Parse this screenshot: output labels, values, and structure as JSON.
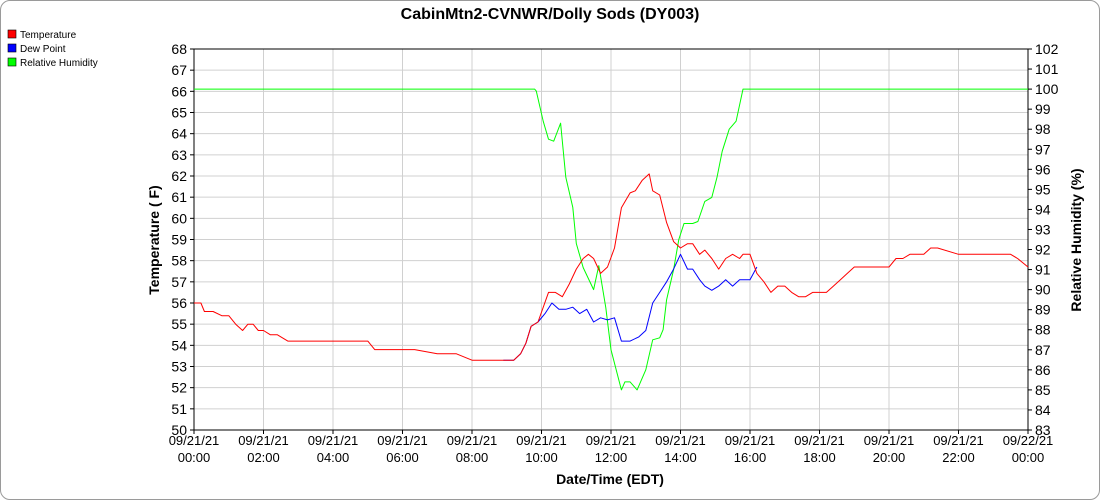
{
  "chart_data": {
    "type": "line",
    "title": "CabinMtn2-CVNWR/Dolly Sods (DY003)",
    "xlabel": "Date/Time (EDT)",
    "ylabel": "Temperature ( F)",
    "y2label": "Relative Humidity (%)",
    "ylim": [
      50,
      68
    ],
    "y2lim": [
      83,
      102
    ],
    "xlim_hours": [
      0,
      24
    ],
    "grid": true,
    "legend_position": "top-left",
    "x_ticks": [
      {
        "date": "09/21/21",
        "time": "00:00"
      },
      {
        "date": "09/21/21",
        "time": "02:00"
      },
      {
        "date": "09/21/21",
        "time": "04:00"
      },
      {
        "date": "09/21/21",
        "time": "06:00"
      },
      {
        "date": "09/21/21",
        "time": "08:00"
      },
      {
        "date": "09/21/21",
        "time": "10:00"
      },
      {
        "date": "09/21/21",
        "time": "12:00"
      },
      {
        "date": "09/21/21",
        "time": "14:00"
      },
      {
        "date": "09/21/21",
        "time": "16:00"
      },
      {
        "date": "09/21/21",
        "time": "18:00"
      },
      {
        "date": "09/21/21",
        "time": "20:00"
      },
      {
        "date": "09/21/21",
        "time": "22:00"
      },
      {
        "date": "09/22/21",
        "time": "00:00"
      }
    ],
    "y_ticks": [
      50,
      51,
      52,
      53,
      54,
      55,
      56,
      57,
      58,
      59,
      60,
      61,
      62,
      63,
      64,
      65,
      66,
      67,
      68
    ],
    "y2_ticks": [
      83,
      84,
      85,
      86,
      87,
      88,
      89,
      90,
      91,
      92,
      93,
      94,
      95,
      96,
      97,
      98,
      99,
      100,
      101,
      102
    ],
    "series": [
      {
        "name": "Temperature",
        "axis": "left",
        "color": "#ff0000",
        "x": [
          0.0,
          0.2,
          0.3,
          0.55,
          0.8,
          1.0,
          1.2,
          1.4,
          1.55,
          1.7,
          1.85,
          2.0,
          2.2,
          2.4,
          2.7,
          3.1,
          3.3,
          4.0,
          5.0,
          5.2,
          6.0,
          6.35,
          7.0,
          7.3,
          7.55,
          8.0,
          8.5,
          8.9,
          9.0,
          9.2,
          9.4,
          9.55,
          9.7,
          9.9,
          10.2,
          10.4,
          10.6,
          10.8,
          11.0,
          11.2,
          11.35,
          11.5,
          11.7,
          11.9,
          12.1,
          12.3,
          12.55,
          12.7,
          12.9,
          13.1,
          13.2,
          13.4,
          13.6,
          13.8,
          14.0,
          14.2,
          14.35,
          14.55,
          14.7,
          14.9,
          15.1,
          15.3,
          15.5,
          15.7,
          15.8,
          16.0,
          16.2,
          16.4,
          16.6,
          16.8,
          17.0,
          17.2,
          17.4,
          17.6,
          17.8,
          18.0,
          18.2,
          18.4,
          18.6,
          18.8,
          19.0,
          19.2,
          19.4,
          19.6,
          19.8,
          20.0,
          20.2,
          20.4,
          20.6,
          20.8,
          21.0,
          21.2,
          21.4,
          22.0,
          23.0,
          23.3,
          23.5,
          23.7,
          24.0
        ],
        "values": [
          56.0,
          56.0,
          55.6,
          55.6,
          55.4,
          55.4,
          55.0,
          54.7,
          55.0,
          55.0,
          54.7,
          54.7,
          54.5,
          54.5,
          54.2,
          54.2,
          54.2,
          54.2,
          54.2,
          53.8,
          53.8,
          53.8,
          53.6,
          53.6,
          53.6,
          53.3,
          53.3,
          53.3,
          53.3,
          53.3,
          53.6,
          54.1,
          54.9,
          55.1,
          56.5,
          56.5,
          56.3,
          56.9,
          57.6,
          58.1,
          58.3,
          58.1,
          57.4,
          57.7,
          58.6,
          60.5,
          61.2,
          61.3,
          61.8,
          62.1,
          61.3,
          61.1,
          59.8,
          58.9,
          58.6,
          58.8,
          58.8,
          58.3,
          58.5,
          58.1,
          57.6,
          58.1,
          58.3,
          58.1,
          58.3,
          58.3,
          57.4,
          57.0,
          56.5,
          56.8,
          56.8,
          56.5,
          56.3,
          56.3,
          56.5,
          56.5,
          56.5,
          56.8,
          57.1,
          57.4,
          57.7,
          57.7,
          57.7,
          57.7,
          57.7,
          57.7,
          58.1,
          58.1,
          58.3,
          58.3,
          58.3,
          58.6,
          58.6,
          58.3,
          58.3,
          58.3,
          58.3,
          58.1,
          57.7
        ]
      },
      {
        "name": "Dew Point",
        "axis": "left",
        "color": "#0000ff",
        "x": [
          8.9,
          9.0,
          9.2,
          9.4,
          9.55,
          9.7,
          9.9,
          10.1,
          10.3,
          10.5,
          10.7,
          10.9,
          11.1,
          11.3,
          11.5,
          11.7,
          11.9,
          12.1,
          12.3,
          12.55,
          12.8,
          13.0,
          13.2,
          13.4,
          13.6,
          13.8,
          14.0,
          14.2,
          14.35,
          14.55,
          14.7,
          14.9,
          15.1,
          15.3,
          15.5,
          15.7,
          15.8,
          16.0,
          16.2
        ],
        "values": [
          53.3,
          53.3,
          53.3,
          53.6,
          54.1,
          54.9,
          55.1,
          55.5,
          56.0,
          55.7,
          55.7,
          55.8,
          55.5,
          55.7,
          55.1,
          55.3,
          55.2,
          55.3,
          54.2,
          54.2,
          54.4,
          54.7,
          56.0,
          56.5,
          57.0,
          57.6,
          58.3,
          57.6,
          57.6,
          57.1,
          56.8,
          56.6,
          56.8,
          57.1,
          56.8,
          57.1,
          57.1,
          57.1,
          57.7
        ]
      },
      {
        "name": "Relative Humidity",
        "axis": "right",
        "color": "#00ff00",
        "x": [
          0.0,
          9.8,
          9.85,
          10.05,
          10.2,
          10.35,
          10.55,
          10.7,
          10.9,
          11.0,
          11.2,
          11.5,
          11.65,
          11.85,
          12.0,
          12.3,
          12.4,
          12.55,
          12.75,
          13.0,
          13.2,
          13.4,
          13.5,
          13.6,
          13.8,
          13.95,
          14.1,
          14.35,
          14.5,
          14.7,
          14.9,
          15.05,
          15.2,
          15.4,
          15.6,
          15.8,
          24.0
        ],
        "values": [
          100.0,
          100.0,
          99.9,
          98.4,
          97.5,
          97.4,
          98.3,
          95.6,
          94.1,
          92.3,
          91.1,
          90.0,
          91.2,
          89.1,
          87.0,
          85.0,
          85.4,
          85.4,
          85.0,
          86.0,
          87.5,
          87.6,
          88.0,
          89.5,
          91.0,
          92.5,
          93.3,
          93.3,
          93.4,
          94.4,
          94.6,
          95.6,
          96.9,
          98.0,
          98.4,
          100.0,
          100.0
        ]
      }
    ]
  }
}
